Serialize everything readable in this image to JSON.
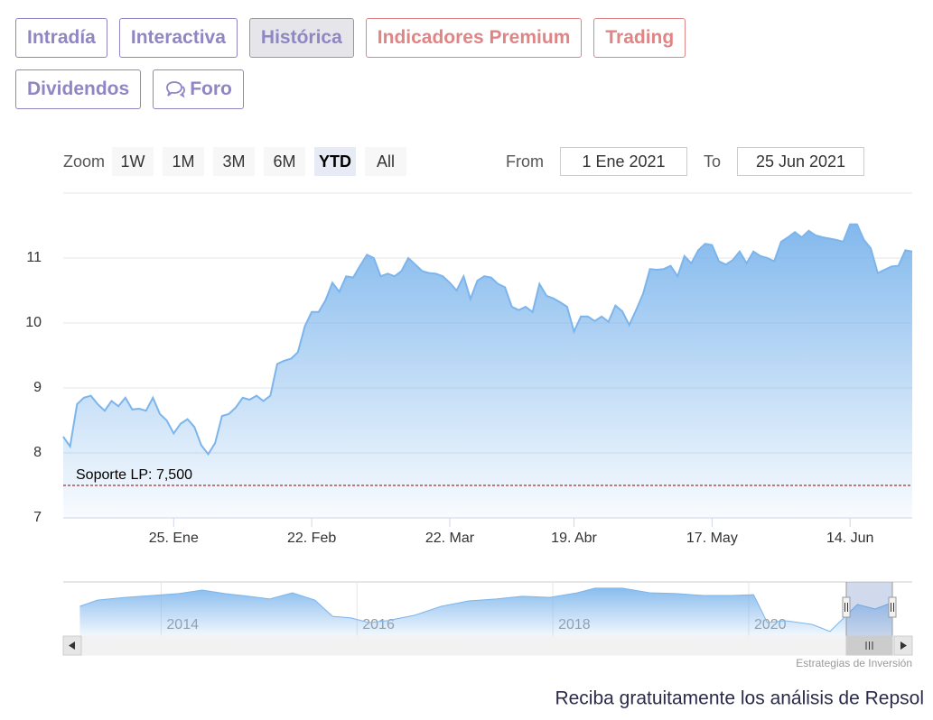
{
  "tabs": [
    {
      "label": "Intradía",
      "color": "#8f86c4",
      "active": false
    },
    {
      "label": "Interactiva",
      "color": "#8f86c4",
      "active": false
    },
    {
      "label": "Histórica",
      "color": "#8f86c4",
      "active": true
    },
    {
      "label": "Indicadores Premium",
      "color": "#e08585",
      "active": false
    },
    {
      "label": "Trading",
      "color": "#e08585",
      "active": false
    },
    {
      "label": "Dividendos",
      "color": "#8f86c4",
      "active": false
    },
    {
      "label": "Foro",
      "color": "#8f86c4",
      "active": false,
      "icon": true
    }
  ],
  "zoom": {
    "label": "Zoom",
    "buttons": [
      "1W",
      "1M",
      "3M",
      "6M",
      "YTD",
      "All"
    ],
    "active": 4
  },
  "range": {
    "from_label": "From",
    "from": "1 Ene 2021",
    "to_label": "To",
    "to": "25 Jun 2021"
  },
  "credits": "Estrategias de Inversión",
  "footer": "Reciba gratuitamente los análisis de Repsol",
  "chart_data": [
    {
      "type": "area",
      "categories": [
        null,
        null,
        null,
        null,
        null,
        null,
        null,
        null,
        null,
        null,
        null,
        null,
        null,
        null,
        null,
        null,
        "25. Ene",
        null,
        null,
        null,
        null,
        null,
        null,
        null,
        null,
        null,
        null,
        null,
        null,
        null,
        null,
        null,
        null,
        null,
        null,
        null,
        "22. Feb",
        null,
        null,
        null,
        null,
        null,
        null,
        null,
        null,
        null,
        null,
        null,
        null,
        null,
        null,
        null,
        null,
        null,
        null,
        null,
        "22. Mar",
        null,
        null,
        null,
        null,
        null,
        null,
        null,
        null,
        null,
        null,
        null,
        null,
        null,
        null,
        null,
        null,
        null,
        "19. Abr",
        null,
        null,
        null,
        null,
        null,
        null,
        null,
        null,
        null,
        null,
        null,
        null,
        null,
        null,
        null,
        null,
        null,
        null,
        null,
        "17. May",
        null,
        null,
        null,
        null,
        null,
        null,
        null,
        null,
        null,
        null,
        null,
        null,
        null,
        null,
        null,
        null,
        null,
        null,
        null,
        "14. Jun",
        null,
        null,
        null,
        null,
        null,
        null,
        null,
        null,
        null
      ],
      "series": [
        {
          "color": "#7cb5ec",
          "values": [
            8.25,
            8.1,
            8.75,
            8.85,
            8.88,
            8.75,
            8.65,
            8.8,
            8.72,
            8.85,
            8.67,
            8.68,
            8.65,
            8.85,
            8.6,
            8.5,
            8.3,
            8.45,
            8.52,
            8.4,
            8.12,
            7.98,
            8.15,
            8.57,
            8.6,
            8.7,
            8.85,
            8.82,
            8.88,
            8.8,
            8.88,
            9.37,
            9.42,
            9.45,
            9.55,
            9.95,
            10.17,
            10.17,
            10.35,
            10.62,
            10.48,
            10.72,
            10.7,
            10.88,
            11.05,
            11.0,
            10.72,
            10.76,
            10.72,
            10.8,
            11.0,
            10.9,
            10.8,
            10.77,
            10.76,
            10.72,
            10.62,
            10.5,
            10.72,
            10.37,
            10.65,
            10.72,
            10.7,
            10.6,
            10.55,
            10.25,
            10.2,
            10.25,
            10.17,
            10.6,
            10.42,
            10.38,
            10.32,
            10.25,
            9.87,
            10.1,
            10.1,
            10.03,
            10.1,
            10.02,
            10.27,
            10.18,
            9.97,
            10.2,
            10.45,
            10.83,
            10.82,
            10.83,
            10.88,
            10.72,
            11.03,
            10.92,
            11.12,
            11.22,
            11.2,
            10.95,
            10.9,
            10.97,
            11.1,
            10.92,
            11.1,
            11.03,
            11.0,
            10.95,
            11.25,
            11.32,
            11.4,
            11.32,
            11.42,
            11.35,
            11.32,
            11.3,
            11.28,
            11.25,
            11.52,
            11.52,
            11.28,
            11.15,
            10.77,
            10.82,
            10.87,
            10.88,
            11.12,
            11.1
          ]
        }
      ],
      "ylim": [
        7,
        12
      ],
      "yticks": [
        7,
        8,
        9,
        10,
        11
      ],
      "grid": true,
      "plot_lines": [
        {
          "value": 7.5,
          "label": "Soporte LP: 7,500",
          "color": "#8b0000"
        }
      ]
    },
    {
      "type": "area",
      "x": [
        2013.17,
        2013.35,
        2013.63,
        2013.91,
        2014.18,
        2014.42,
        2014.65,
        2014.83,
        2015.11,
        2015.34,
        2015.57,
        2015.75,
        2015.94,
        2016.12,
        2016.31,
        2016.59,
        2016.86,
        2017.14,
        2017.42,
        2017.69,
        2017.97,
        2018.25,
        2018.43,
        2018.71,
        2018.99,
        2019.26,
        2019.54,
        2019.82,
        2020.05,
        2020.19,
        2020.37,
        2020.65,
        2020.83,
        2020.97,
        2021.11,
        2021.29,
        2021.46
      ],
      "series": [
        {
          "color": "#7cb5ec",
          "values": [
            11.7,
            13.3,
            14.0,
            14.5,
            15.0,
            15.9,
            15.0,
            14.5,
            13.6,
            15.2,
            13.3,
            9.1,
            8.7,
            7.5,
            8.0,
            9.4,
            11.7,
            13.1,
            13.6,
            14.3,
            14.0,
            15.2,
            16.4,
            16.4,
            15.2,
            15.0,
            14.5,
            14.5,
            14.7,
            7.5,
            8.0,
            7.0,
            5.2,
            8.7,
            12.2,
            11.0,
            12.6
          ]
        }
      ],
      "xlim": [
        2013,
        2021.67
      ],
      "xticks": [
        2014,
        2016,
        2018,
        2020
      ],
      "ylim": [
        4,
        18
      ],
      "grid": true
    }
  ]
}
